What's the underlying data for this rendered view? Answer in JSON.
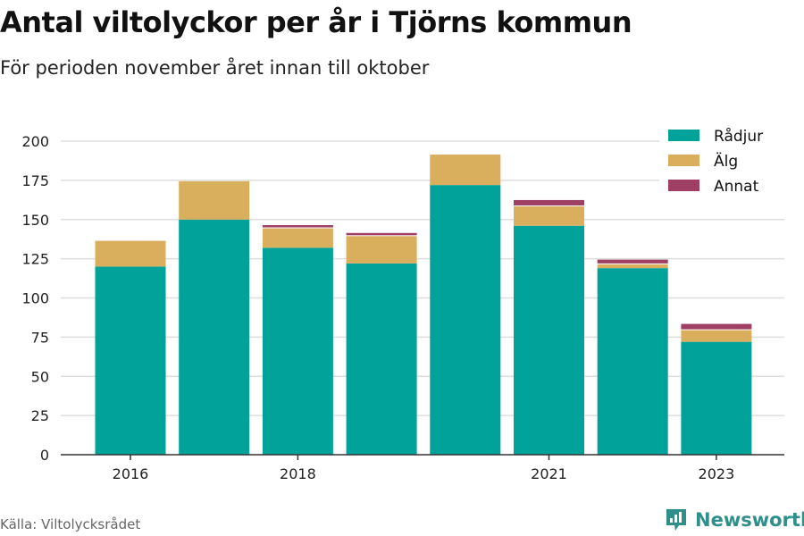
{
  "title": "Antal viltolyckor per år i Tjörns kommun",
  "subtitle": "För perioden november året innan till oktober",
  "source": "Källa: Viltolycksrådet",
  "brand": "Newsworthy",
  "brand_icon": "newsworthy-logo-icon",
  "colors": {
    "Rådjur": "#00a29a",
    "Älg": "#d9ae5d",
    "Annat": "#9e3f63",
    "brand": "#2f8f8a"
  },
  "chart_data": {
    "type": "bar",
    "stacked": true,
    "categories": [
      "2016",
      "2017",
      "2018",
      "2019",
      "2020",
      "2021",
      "2022",
      "2023"
    ],
    "x_tick_labels": [
      "2016",
      "",
      "2018",
      "",
      "",
      "2021",
      "",
      "2023"
    ],
    "series": [
      {
        "name": "Rådjur",
        "values": [
          120,
          150,
          132,
          122,
          172,
          146,
          119,
          72
        ]
      },
      {
        "name": "Älg",
        "values": [
          17,
          25,
          13,
          18,
          20,
          13,
          3,
          8
        ]
      },
      {
        "name": "Annat",
        "values": [
          0,
          0,
          2,
          2,
          0,
          4,
          3,
          4
        ]
      }
    ],
    "ylim": [
      0,
      200
    ],
    "yticks": [
      0,
      25,
      50,
      75,
      100,
      125,
      150,
      175,
      200
    ],
    "grid": true,
    "legend_position": "top-right"
  }
}
